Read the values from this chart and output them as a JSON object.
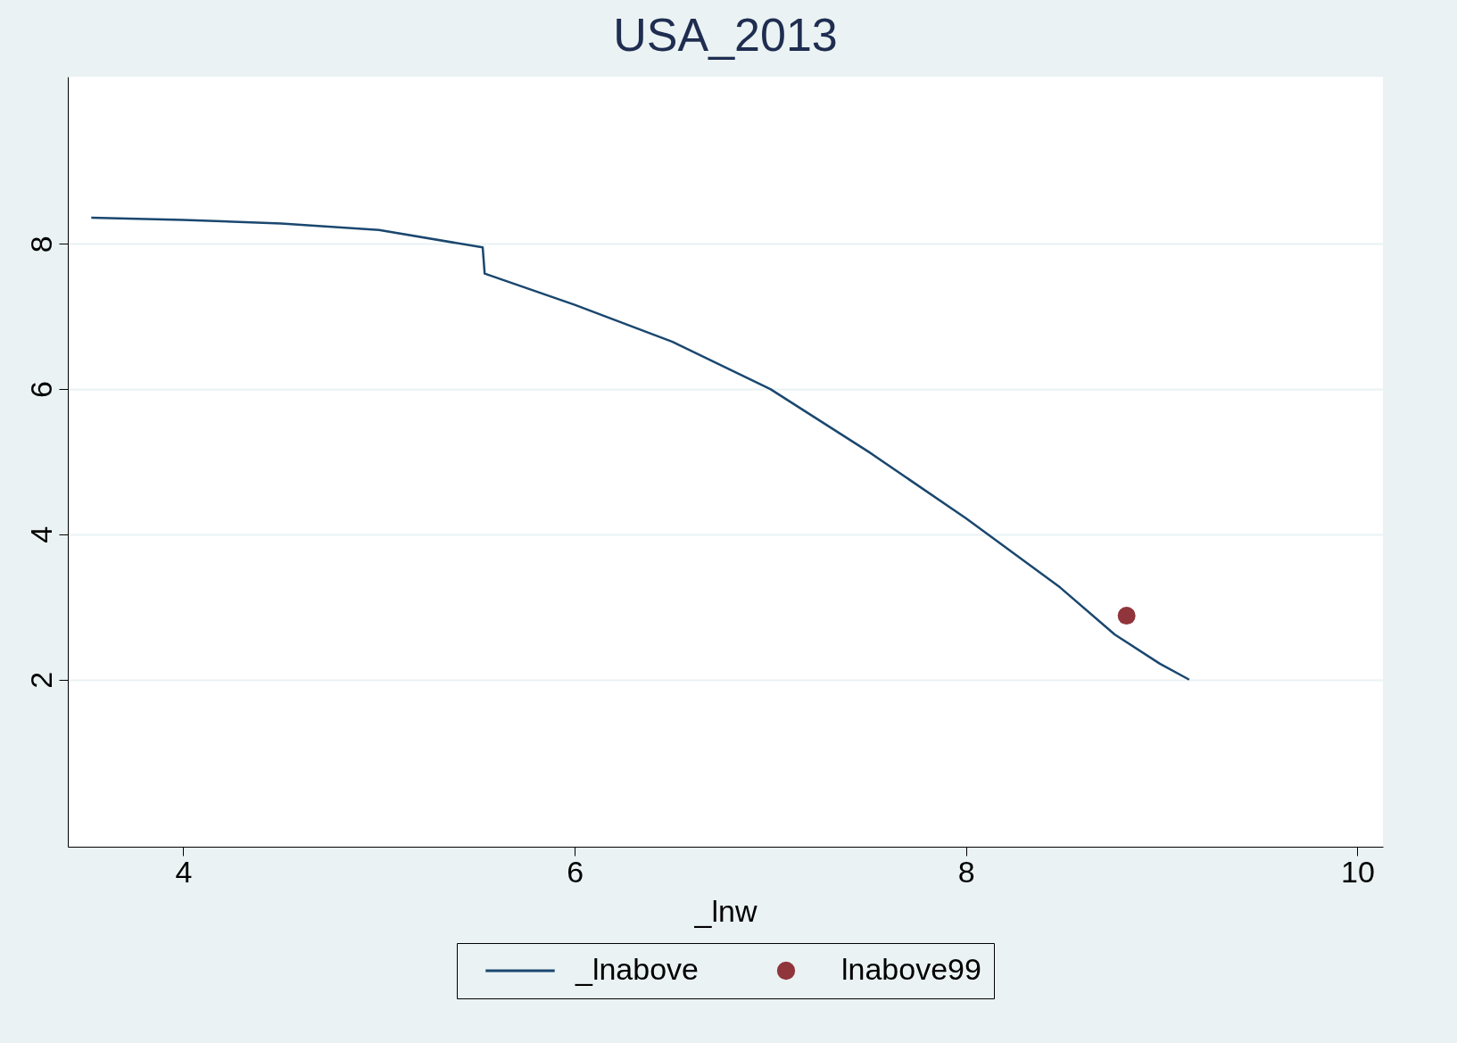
{
  "chart_data": {
    "type": "line",
    "title": "USA_2013",
    "xlabel": "_lnw",
    "xlim": [
      3.41,
      10.13
    ],
    "ylim": [
      -0.3,
      10.3
    ],
    "xticks": [
      4,
      6,
      8,
      10
    ],
    "yticks": [
      2,
      4,
      6,
      8
    ],
    "grid": "y",
    "legend": "bottom",
    "series": [
      {
        "name": "_lnabove",
        "color": "#1a476f",
        "marker": "none",
        "x": [
          3.53,
          4,
          4.5,
          5,
          5.53,
          5.54,
          6,
          6.5,
          7,
          7.5,
          8,
          8.48,
          8.76,
          8.99,
          9.14
        ],
        "values": [
          8.36,
          8.33,
          8.28,
          8.19,
          7.95,
          7.59,
          7.16,
          6.65,
          6.0,
          5.14,
          4.22,
          3.27,
          2.62,
          2.22,
          2.0
        ]
      },
      {
        "name": "lnabove99",
        "type": "scatter",
        "color": "#90353b",
        "marker": "circle",
        "x": [
          8.82
        ],
        "values": [
          2.88
        ]
      }
    ]
  }
}
